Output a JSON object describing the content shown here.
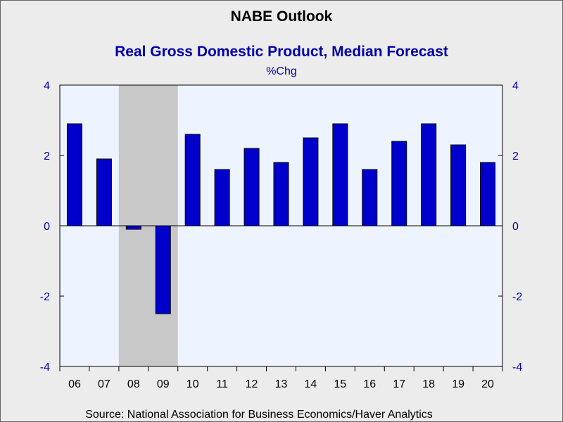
{
  "chart_data": {
    "type": "bar",
    "header": "NABE Outlook",
    "title": "Real Gross Domestic Product, Median Forecast",
    "units": "%Chg",
    "categories": [
      "06",
      "07",
      "08",
      "09",
      "10",
      "11",
      "12",
      "13",
      "14",
      "15",
      "16",
      "17",
      "18",
      "19",
      "20"
    ],
    "values": [
      2.9,
      1.9,
      -0.1,
      -2.5,
      2.6,
      1.6,
      2.2,
      1.8,
      2.5,
      2.9,
      1.6,
      2.4,
      2.9,
      2.3,
      1.8
    ],
    "ylim": [
      -4,
      4
    ],
    "yticks": [
      -4,
      -2,
      0,
      2,
      4
    ],
    "ytick_labels": [
      "-4",
      "-2",
      "0",
      "2",
      "4"
    ],
    "recession_shading": {
      "from": "08",
      "to": "09",
      "color": "#c8c8c8"
    },
    "grid": false,
    "source": "Source:  National Association for Business Economics/Haver Analytics",
    "colors": {
      "bar": "#0000cc",
      "plot_bg": "#eef4ff",
      "page_bg": "#ececec",
      "title": "#0000aa",
      "header": "#000000",
      "axis_text": "#0000aa"
    }
  }
}
